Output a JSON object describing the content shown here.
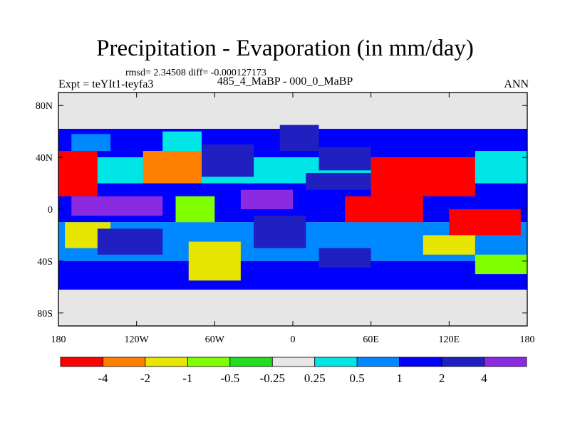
{
  "chart_data": {
    "type": "heatmap",
    "title": "Precipitation - Evaporation (in mm/day)",
    "stats_line": "rmsd= 2.34508 diff= -0.000127173",
    "subtitle": "485_4_MaBP - 000_0_MaBP",
    "left_label": "Expt = teYIt1-teyfa3",
    "right_label": "ANN",
    "x_ticks": [
      "180",
      "120W",
      "60W",
      "0",
      "60E",
      "120E",
      "180"
    ],
    "x_tick_values": [
      -180,
      -120,
      -60,
      0,
      60,
      120,
      180
    ],
    "y_ticks": [
      "80N",
      "40N",
      "0",
      "40S",
      "80S"
    ],
    "y_tick_values": [
      80,
      40,
      0,
      -40,
      -80
    ],
    "xlim": [
      -180,
      180
    ],
    "ylim": [
      -90,
      90
    ],
    "colorbar": {
      "labels": [
        "-4",
        "-2",
        "-1",
        "-0.5",
        "-0.25",
        "0.25",
        "0.5",
        "1",
        "2",
        "4"
      ],
      "colors": [
        "#ff0000",
        "#ff8000",
        "#e6e600",
        "#80ff00",
        "#22dd22",
        "#e6e6e6",
        "#00e6e6",
        "#0088ff",
        "#0000ff",
        "#2020c0",
        "#8a2be2"
      ]
    },
    "field_regions": [
      {
        "lon": [
          -180,
          180
        ],
        "lat": [
          -90,
          90
        ],
        "value": 0.1
      },
      {
        "lon": [
          -180,
          180
        ],
        "lat": [
          60,
          90
        ],
        "value": 0.0
      },
      {
        "lon": [
          -180,
          180
        ],
        "lat": [
          -90,
          -62
        ],
        "value": 0.0
      },
      {
        "lon": [
          -180,
          180
        ],
        "lat": [
          40,
          62
        ],
        "value": 1.5
      },
      {
        "lon": [
          -180,
          180
        ],
        "lat": [
          20,
          40
        ],
        "value": 0.4
      },
      {
        "lon": [
          -180,
          180
        ],
        "lat": [
          -10,
          20
        ],
        "value": 1.5
      },
      {
        "lon": [
          -180,
          180
        ],
        "lat": [
          -40,
          -10
        ],
        "value": 0.8
      },
      {
        "lon": [
          -180,
          180
        ],
        "lat": [
          -62,
          -40
        ],
        "value": 1.5
      },
      {
        "lon": [
          -180,
          -150
        ],
        "lat": [
          10,
          45
        ],
        "value": -4.5
      },
      {
        "lon": [
          -170,
          -140
        ],
        "lat": [
          45,
          58
        ],
        "value": 0.7
      },
      {
        "lon": [
          -170,
          -100
        ],
        "lat": [
          -5,
          10
        ],
        "value": 5
      },
      {
        "lon": [
          -175,
          -140
        ],
        "lat": [
          -30,
          -10
        ],
        "value": -1.5
      },
      {
        "lon": [
          -150,
          -100
        ],
        "lat": [
          -35,
          -15
        ],
        "value": 3
      },
      {
        "lon": [
          -115,
          -70
        ],
        "lat": [
          20,
          45
        ],
        "value": -2.5
      },
      {
        "lon": [
          -100,
          -70
        ],
        "lat": [
          45,
          60
        ],
        "value": 0.3
      },
      {
        "lon": [
          -90,
          -60
        ],
        "lat": [
          -10,
          10
        ],
        "value": -0.7
      },
      {
        "lon": [
          -80,
          -40
        ],
        "lat": [
          -55,
          -25
        ],
        "value": -1.5
      },
      {
        "lon": [
          -70,
          -30
        ],
        "lat": [
          25,
          50
        ],
        "value": 3
      },
      {
        "lon": [
          -40,
          0
        ],
        "lat": [
          0,
          15
        ],
        "value": 5
      },
      {
        "lon": [
          -30,
          10
        ],
        "lat": [
          -30,
          -5
        ],
        "value": 2.5
      },
      {
        "lon": [
          -10,
          20
        ],
        "lat": [
          45,
          65
        ],
        "value": 3
      },
      {
        "lon": [
          20,
          60
        ],
        "lat": [
          30,
          48
        ],
        "value": 3
      },
      {
        "lon": [
          10,
          60
        ],
        "lat": [
          15,
          28
        ],
        "value": 2.5
      },
      {
        "lon": [
          40,
          100
        ],
        "lat": [
          -10,
          10
        ],
        "value": -4.5
      },
      {
        "lon": [
          60,
          140
        ],
        "lat": [
          10,
          40
        ],
        "value": -4.5
      },
      {
        "lon": [
          120,
          175
        ],
        "lat": [
          -20,
          0
        ],
        "value": -4.5
      },
      {
        "lon": [
          100,
          140
        ],
        "lat": [
          -35,
          -20
        ],
        "value": -1.5
      },
      {
        "lon": [
          140,
          180
        ],
        "lat": [
          20,
          45
        ],
        "value": 0.3
      },
      {
        "lon": [
          20,
          60
        ],
        "lat": [
          -45,
          -30
        ],
        "value": 3
      },
      {
        "lon": [
          140,
          180
        ],
        "lat": [
          -50,
          -35
        ],
        "value": -0.7
      }
    ]
  }
}
